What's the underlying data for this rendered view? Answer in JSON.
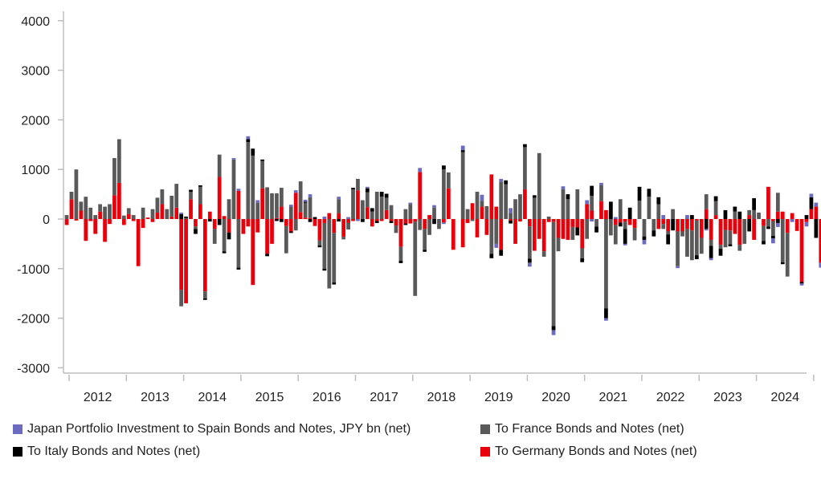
{
  "chart_data": {
    "type": "bar",
    "stacked": true,
    "title": "",
    "xlabel": "",
    "ylabel": "",
    "ylim": [
      -3000,
      4000
    ],
    "y_ticks": [
      "4000",
      "3000",
      "2000",
      "1000",
      "0",
      "-1000",
      "-2000",
      "-3000"
    ],
    "y_tick_values": [
      4000,
      3000,
      2000,
      1000,
      0,
      -1000,
      -2000,
      -3000
    ],
    "x_tick_labels": [
      "2012",
      "2013",
      "2014",
      "2015",
      "2016",
      "2017",
      "2018",
      "2019",
      "2020",
      "2021",
      "2022",
      "2023",
      "2024"
    ],
    "start_period": "2011-12",
    "frequency": "monthly",
    "grid": false,
    "legend_position": "bottom",
    "series": [
      {
        "name": "Japan Portfolio Investment to Spain Bonds and Notes, JPY bn (net)",
        "color": "#6b6bbf",
        "values": [
          0,
          0,
          0,
          0,
          0,
          0,
          0,
          0,
          0,
          0,
          0,
          0,
          0,
          0,
          0,
          0,
          0,
          0,
          0,
          0,
          0,
          0,
          0,
          0,
          30,
          0,
          0,
          0,
          0,
          0,
          0,
          0,
          0,
          0,
          0,
          30,
          40,
          0,
          60,
          0,
          50,
          0,
          0,
          0,
          0,
          0,
          0,
          40,
          50,
          0,
          40,
          60,
          0,
          0,
          50,
          0,
          0,
          50,
          0,
          40,
          0,
          -40,
          0,
          30,
          0,
          0,
          0,
          0,
          0,
          0,
          0,
          0,
          30,
          0,
          80,
          0,
          0,
          50,
          0,
          -30,
          0,
          0,
          0,
          90,
          0,
          0,
          0,
          120,
          0,
          0,
          -80,
          60,
          0,
          100,
          0,
          0,
          0,
          -80,
          0,
          0,
          0,
          0,
          -100,
          0,
          60,
          0,
          0,
          0,
          0,
          80,
          -50,
          0,
          50,
          -50,
          0,
          40,
          0,
          -30,
          0,
          0,
          0,
          -90,
          0,
          0,
          0,
          80,
          0,
          0,
          -40,
          0,
          80,
          0,
          0,
          0,
          -30,
          -40,
          0,
          0,
          0,
          0,
          0,
          0,
          0,
          0,
          0,
          0,
          0,
          0,
          -100,
          -80,
          0,
          0,
          -60,
          0,
          -40,
          -90,
          70,
          80,
          -100
        ]
      },
      {
        "name": "To France Bonds and Notes (net)",
        "color": "#595959",
        "values": [
          80,
          150,
          1000,
          180,
          450,
          230,
          80,
          150,
          250,
          300,
          750,
          880,
          70,
          120,
          80,
          0,
          230,
          0,
          200,
          300,
          300,
          200,
          420,
          480,
          -330,
          20,
          150,
          -50,
          350,
          -140,
          0,
          -300,
          450,
          -650,
          400,
          1200,
          -980,
          0,
          1550,
          1280,
          330,
          550,
          640,
          520,
          500,
          380,
          -550,
          250,
          -230,
          620,
          300,
          420,
          0,
          -100,
          -920,
          -1400,
          -1000,
          280,
          -50,
          -130,
          600,
          230,
          380,
          300,
          150,
          550,
          450,
          250,
          280,
          -150,
          -280,
          200,
          300,
          -1500,
          -220,
          -420,
          -320,
          230,
          -200,
          1000,
          320,
          0,
          0,
          1350,
          200,
          -40,
          550,
          120,
          260,
          -700,
          -500,
          750,
          700,
          120,
          400,
          500,
          850,
          -650,
          430,
          1330,
          -110,
          50,
          -2100,
          -270,
          600,
          400,
          -260,
          600,
          -200,
          -400,
          300,
          -150,
          320,
          -1800,
          -330,
          -390,
          400,
          -150,
          0,
          -250,
          370,
          -350,
          450,
          -230,
          300,
          -100,
          -60,
          200,
          -700,
          -100,
          -560,
          -600,
          -700,
          -320,
          300,
          -120,
          280,
          -80,
          -350,
          -280,
          150,
          -120,
          -500,
          100,
          180,
          130,
          -300,
          -150,
          -300,
          380,
          -870,
          -880
        ]
      },
      {
        "name": "To Italy Bonds and Notes (net)",
        "color": "#000000",
        "values": [
          0,
          0,
          0,
          0,
          0,
          0,
          0,
          0,
          0,
          0,
          0,
          0,
          0,
          0,
          0,
          0,
          0,
          0,
          0,
          0,
          0,
          0,
          0,
          0,
          100,
          30,
          40,
          -100,
          30,
          -30,
          -50,
          0,
          -120,
          -40,
          -140,
          0,
          -40,
          0,
          60,
          140,
          0,
          30,
          -50,
          0,
          -40,
          -60,
          0,
          -30,
          0,
          0,
          20,
          -60,
          40,
          -40,
          -40,
          0,
          -40,
          -50,
          0,
          0,
          30,
          0,
          -60,
          80,
          70,
          -40,
          100,
          80,
          -40,
          0,
          -50,
          -30,
          0,
          0,
          0,
          -40,
          0,
          -100,
          0,
          80,
          0,
          0,
          0,
          40,
          0,
          0,
          0,
          0,
          0,
          -90,
          0,
          -120,
          80,
          -60,
          0,
          0,
          60,
          -80,
          50,
          0,
          0,
          0,
          -80,
          0,
          0,
          100,
          0,
          -160,
          -80,
          0,
          200,
          -120,
          0,
          -200,
          350,
          0,
          -80,
          -300,
          230,
          0,
          280,
          -70,
          160,
          -120,
          140,
          0,
          -200,
          -230,
          0,
          0,
          0,
          80,
          -80,
          0,
          -200,
          -250,
          100,
          -140,
          180,
          -40,
          100,
          150,
          0,
          -250,
          240,
          0,
          -70,
          -50,
          -50,
          -80,
          -40,
          0,
          0,
          0,
          -30,
          80,
          240,
          -380
        ]
      },
      {
        "name": "To Germany Bonds and Notes (net)",
        "color": "#e8000b",
        "values": [
          -120,
          400,
          -30,
          170,
          -440,
          -40,
          -300,
          150,
          -460,
          -100,
          480,
          730,
          -120,
          100,
          -40,
          -950,
          -180,
          30,
          -60,
          130,
          300,
          0,
          50,
          230,
          -1430,
          -1700,
          400,
          -150,
          300,
          -1460,
          150,
          -200,
          850,
          60,
          -270,
          0,
          570,
          -300,
          -150,
          -1330,
          -270,
          620,
          -700,
          -500,
          20,
          250,
          -140,
          -250,
          530,
          140,
          30,
          20,
          -140,
          -430,
          -80,
          120,
          -280,
          120,
          -360,
          -80,
          -40,
          580,
          0,
          240,
          -150,
          -40,
          -40,
          180,
          -40,
          -130,
          -560,
          -90,
          -90,
          -50,
          950,
          -200,
          80,
          0,
          0,
          -70,
          620,
          -620,
          0,
          -570,
          -80,
          320,
          -370,
          250,
          -320,
          900,
          250,
          -620,
          0,
          -30,
          -500,
          -50,
          600,
          -150,
          -640,
          -400,
          -650,
          -60,
          -60,
          -380,
          -400,
          -420,
          -160,
          -170,
          -590,
          300,
          170,
          0,
          360,
          180,
          0,
          -120,
          -70,
          -50,
          -120,
          -180,
          0,
          0,
          0,
          0,
          -200,
          -100,
          -250,
          0,
          -250,
          -250,
          -200,
          -230,
          -30,
          -380,
          200,
          -420,
          80,
          -520,
          -220,
          -230,
          -300,
          -520,
          0,
          80,
          -420,
          0,
          -140,
          650,
          -40,
          150,
          150,
          -280,
          120,
          -240,
          -1270,
          -60,
          200,
          250,
          -880
        ]
      }
    ]
  },
  "legend": {
    "spain": "Japan Portfolio Investment to Spain Bonds and Notes, JPY bn (net)",
    "france": "To France Bonds and Notes (net)",
    "italy": "To Italy Bonds and Notes (net)",
    "germany": "To Germany Bonds and Notes (net)"
  }
}
